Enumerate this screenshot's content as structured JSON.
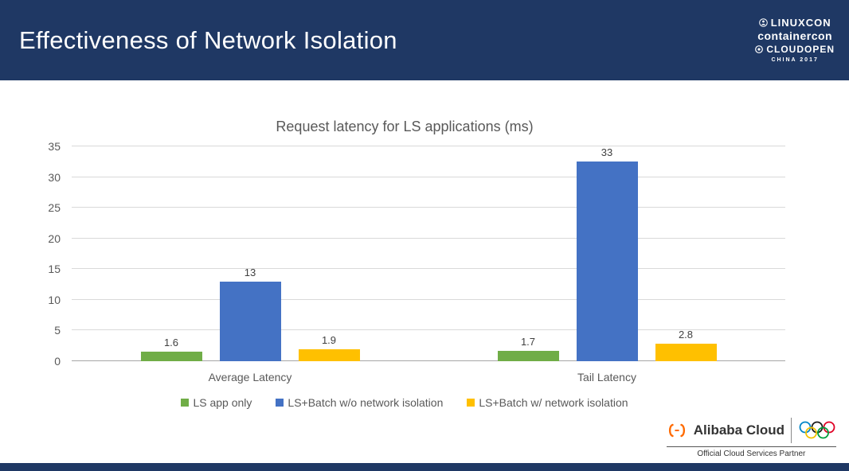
{
  "header": {
    "title": "Effectiveness of Network Isolation",
    "bg_color": "#1f3864",
    "logos": {
      "linuxcon": "LINUXCON",
      "containercon": "containercon",
      "cloudopen": "CLOUDOPEN",
      "china": "CHINA 2017"
    }
  },
  "chart_data": {
    "type": "bar",
    "title": "Request latency for LS applications (ms)",
    "categories": [
      "Average Latency",
      "Tail Latency"
    ],
    "series": [
      {
        "name": "LS app only",
        "color": "#70AD47",
        "values": [
          1.6,
          1.7
        ]
      },
      {
        "name": "LS+Batch w/o network isolation",
        "color": "#4472C4",
        "values": [
          13,
          33
        ]
      },
      {
        "name": "LS+Batch w/ network isolation",
        "color": "#FFC000",
        "values": [
          1.9,
          2.8
        ]
      }
    ],
    "ylim": [
      0,
      35
    ],
    "ytick_step": 5,
    "grid": true,
    "legend_position": "bottom"
  },
  "footer": {
    "partner_brand": "Alibaba Cloud",
    "partner_caption": "Official Cloud Services Partner"
  }
}
